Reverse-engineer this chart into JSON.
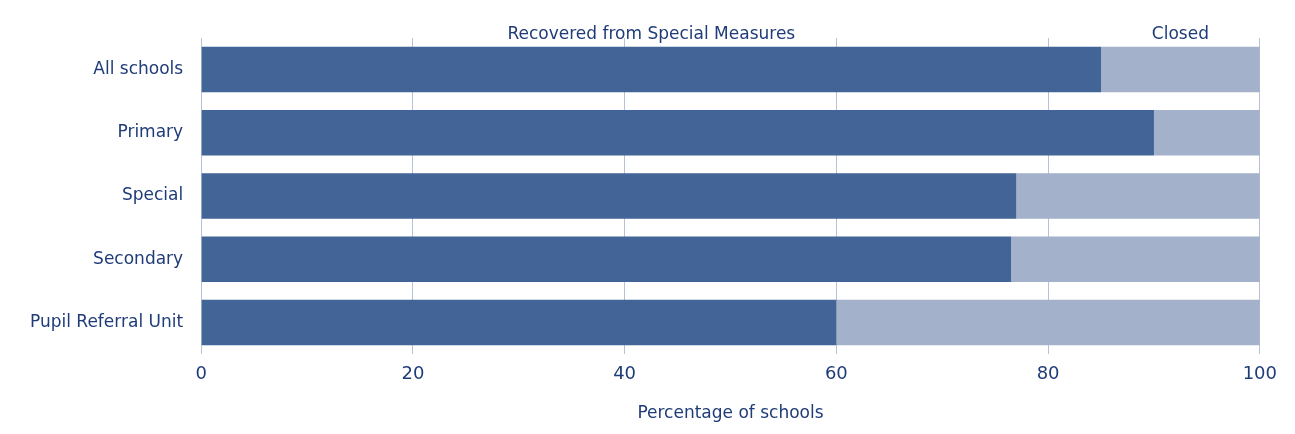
{
  "chart_data": {
    "type": "bar",
    "orientation": "horizontal",
    "stacked": true,
    "xlabel": "Percentage of schools",
    "categories": [
      "All schools",
      "Primary",
      "Special",
      "Secondary",
      "Pupil Referral Unit"
    ],
    "series": [
      {
        "name": "Recovered from Special Measures",
        "color": "#426496",
        "values": [
          85,
          90,
          77,
          76.5,
          60
        ]
      },
      {
        "name": "Closed",
        "color": "#a3b1cb",
        "values": [
          15,
          10,
          23,
          23.5,
          40
        ]
      }
    ],
    "xlim": [
      0,
      100
    ],
    "xticks": [
      0,
      20,
      40,
      60,
      80,
      100
    ],
    "grid": "x",
    "legend": false
  }
}
